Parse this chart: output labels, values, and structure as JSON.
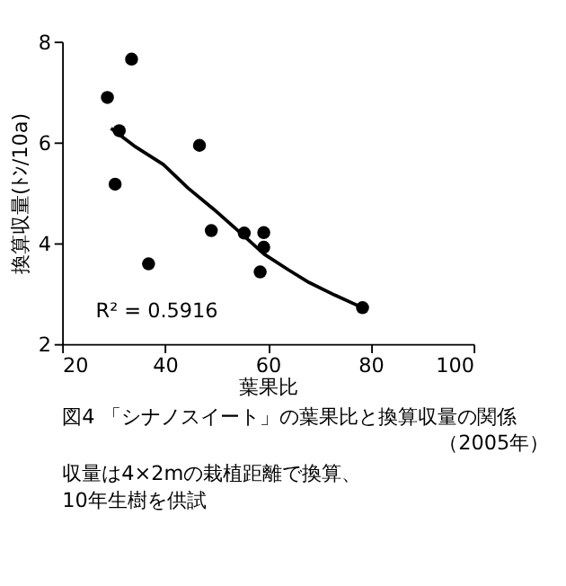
{
  "chart_data": {
    "type": "scatter",
    "title": "図4 「シナノスイート」の葉果比と換算収量の関係",
    "subtitle": "（2005年）",
    "xlabel": "葉果比",
    "ylabel": "換算収量(ﾄﾝ/10a)",
    "xlim": [
      20,
      100
    ],
    "xticks": [
      20,
      40,
      60,
      80,
      100
    ],
    "ylim": [
      2,
      8
    ],
    "yticks": [
      2,
      4,
      6,
      8
    ],
    "grid": false,
    "marker": "circle",
    "series": [
      {
        "color": "#000000",
        "x": [
          28.8,
          33.5,
          31.1,
          30.3,
          36.8,
          46.7,
          49.0,
          55.4,
          59.2,
          59.2,
          58.5,
          78.4
        ],
        "values": [
          6.89,
          7.65,
          6.23,
          5.17,
          3.59,
          5.94,
          4.25,
          4.2,
          4.21,
          3.92,
          3.43,
          2.72
        ]
      },
      {
        "type": "line",
        "color": "#000000",
        "line_style": "solid",
        "marker": "none",
        "x": [
          29.5,
          34.0,
          39.7,
          44.5,
          49.5,
          54.5,
          59.3,
          64.0,
          68.0,
          73.0,
          78.4
        ],
        "values": [
          6.28,
          5.93,
          5.56,
          5.09,
          4.67,
          4.22,
          3.78,
          3.47,
          3.22,
          2.97,
          2.72
        ]
      }
    ],
    "annotations": [
      "R² = 0.5916",
      "収量は4×2mの栽植距離で換算、",
      "10年生樹を供試"
    ]
  }
}
